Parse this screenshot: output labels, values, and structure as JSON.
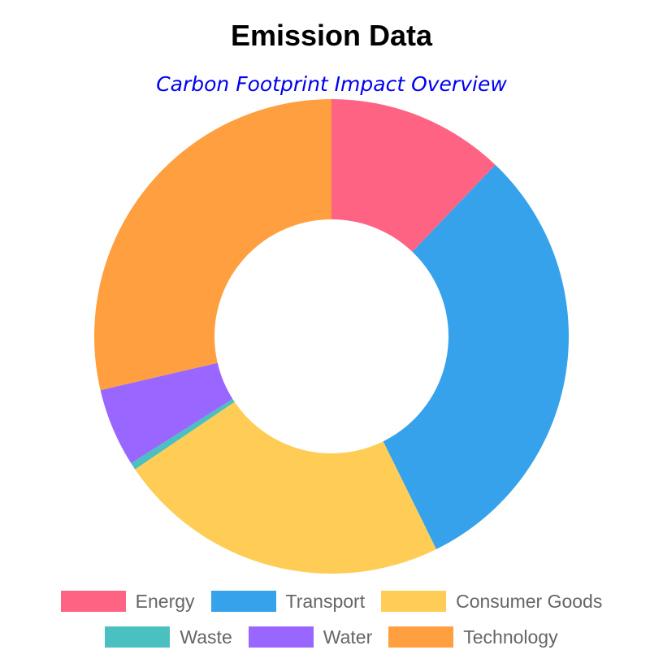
{
  "chart_data": {
    "type": "pie",
    "variant": "doughnut",
    "title": "Emission Data",
    "subtitle": "Carbon Footprint Impact Overview",
    "subtitle_color": "#0000ee",
    "categories": [
      "Energy",
      "Transport",
      "Consumer Goods",
      "Waste",
      "Water",
      "Technology"
    ],
    "values": [
      12.5,
      31.5,
      23.5,
      0.5,
      5.5,
      29.5
    ],
    "colors": [
      "#ff6384",
      "#36a2eb",
      "#ffcd56",
      "#4bc0c0",
      "#9966ff",
      "#ff9f40"
    ],
    "legend_position": "bottom"
  }
}
